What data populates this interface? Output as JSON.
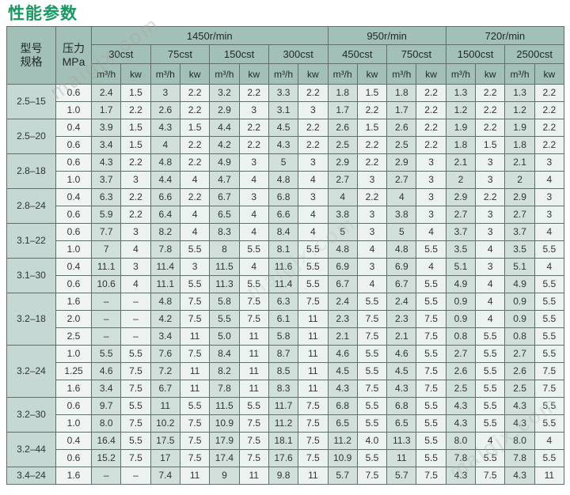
{
  "title": "性能参数",
  "watermark": "maigjx.com",
  "colors": {
    "title_green": "#169a60",
    "header_bg": "#a2bfb8",
    "model_col_bg": "#c6d8d3",
    "pressure_col_bg": "#f0f5f4",
    "flow_col_bg": "#d2e0dc",
    "power_col_bg": "#ecf2f0",
    "grid_line": "#5f6f6c"
  },
  "table": {
    "corner": {
      "model_spec": "型号\n规格",
      "pressure": "压力\nMPa"
    },
    "speed_groups": [
      {
        "label": "1450r/min",
        "viscosity_count": 4
      },
      {
        "label": "950r/min",
        "viscosity_count": 2
      },
      {
        "label": "720r/min",
        "viscosity_count": 2
      }
    ],
    "viscosities": [
      "30cst",
      "75cst",
      "150cst",
      "300cst",
      "450cst",
      "750cst",
      "1500cst",
      "2500cst"
    ],
    "unit_headers": [
      "m³/h",
      "kw"
    ],
    "groups": [
      {
        "model": "2.5–15",
        "rows": [
          {
            "pressure": "0.6",
            "values": [
              "2.4",
              "1.5",
              "3",
              "2.2",
              "3.2",
              "2.2",
              "3.3",
              "2.2",
              "1.8",
              "1.5",
              "1.8",
              "2.2",
              "1.3",
              "2.2",
              "1.3",
              "2.2"
            ]
          },
          {
            "pressure": "1.0",
            "values": [
              "1.7",
              "2.2",
              "2.6",
              "2.2",
              "2.9",
              "3",
              "3.1",
              "3",
              "1.7",
              "2.2",
              "1.7",
              "2.2",
              "1.2",
              "2.2",
              "1.2",
              "2.2"
            ]
          }
        ]
      },
      {
        "model": "2.5–20",
        "rows": [
          {
            "pressure": "0.4",
            "values": [
              "3.9",
              "1.5",
              "4.3",
              "1.5",
              "4.4",
              "2.2",
              "4.5",
              "2.2",
              "2.6",
              "1.5",
              "2.6",
              "2.2",
              "1.9",
              "2.2",
              "1.9",
              "2.2"
            ]
          },
          {
            "pressure": "0.6",
            "values": [
              "3.4",
              "1.5",
              "4",
              "2.2",
              "4.2",
              "2.2",
              "4.3",
              "2.2",
              "2.5",
              "2.2",
              "2.5",
              "2.2",
              "1.8",
              "1.5",
              "1.8",
              "2.2"
            ]
          }
        ]
      },
      {
        "model": "2.8–18",
        "rows": [
          {
            "pressure": "0.6",
            "values": [
              "4.3",
              "2.2",
              "4.8",
              "2.2",
              "4.9",
              "3",
              "5",
              "3",
              "2.9",
              "2.2",
              "2.9",
              "3",
              "2.1",
              "3",
              "2.1",
              "3"
            ]
          },
          {
            "pressure": "1.0",
            "values": [
              "3.7",
              "3",
              "4.4",
              "4",
              "4.7",
              "4",
              "4.8",
              "4",
              "2.7",
              "3",
              "2.7",
              "3",
              "2",
              "3",
              "2",
              "4"
            ]
          }
        ]
      },
      {
        "model": "2.8–24",
        "rows": [
          {
            "pressure": "0.4",
            "values": [
              "6.3",
              "2.2",
              "6.6",
              "2.2",
              "6.7",
              "3",
              "6.8",
              "3",
              "4",
              "2.2",
              "4",
              "3",
              "2.9",
              "2.2",
              "2.9",
              "3"
            ]
          },
          {
            "pressure": "0.6",
            "values": [
              "5.9",
              "2.2",
              "6.4",
              "4",
              "6.5",
              "4",
              "6.6",
              "4",
              "3.8",
              "3",
              "3.8",
              "3",
              "2.7",
              "3",
              "2.7",
              "3"
            ]
          }
        ]
      },
      {
        "model": "3.1–22",
        "rows": [
          {
            "pressure": "0.6",
            "values": [
              "7.7",
              "3",
              "8.2",
              "4",
              "8.3",
              "4",
              "8.4",
              "4",
              "5",
              "3",
              "5",
              "4",
              "3.7",
              "3",
              "3.7",
              "4"
            ]
          },
          {
            "pressure": "1.0",
            "values": [
              "7",
              "4",
              "7.8",
              "5.5",
              "8",
              "5.5",
              "8.1",
              "5.5",
              "4.8",
              "4",
              "4.8",
              "5.5",
              "3.5",
              "4",
              "3.5",
              "5.5"
            ]
          }
        ]
      },
      {
        "model": "3.1–30",
        "rows": [
          {
            "pressure": "0.4",
            "values": [
              "11.1",
              "3",
              "11.4",
              "3",
              "11.5",
              "4",
              "11.6",
              "5.5",
              "6.9",
              "3",
              "6.9",
              "4",
              "5.1",
              "3",
              "5.1",
              "4"
            ]
          },
          {
            "pressure": "0.6",
            "values": [
              "10.6",
              "4",
              "11.1",
              "5.5",
              "11.3",
              "5.5",
              "11.4",
              "5.5",
              "6.7",
              "4",
              "6.7",
              "5.5",
              "4.9",
              "4",
              "4.9",
              "5.5"
            ]
          }
        ]
      },
      {
        "model": "3.2–18",
        "rows": [
          {
            "pressure": "1.6",
            "values": [
              "–",
              "–",
              "4.8",
              "7.5",
              "5.8",
              "7.5",
              "6.3",
              "7.5",
              "2.4",
              "5.5",
              "2.4",
              "5.5",
              "0.9",
              "4",
              "0.9",
              "5.5"
            ]
          },
          {
            "pressure": "2.0",
            "values": [
              "–",
              "–",
              "4.2",
              "7.5",
              "5.5",
              "7.5",
              "6.1",
              "11",
              "2.3",
              "7.5",
              "2.3",
              "7.5",
              "0.9",
              "4",
              "0.9",
              "5.5"
            ]
          },
          {
            "pressure": "2.5",
            "values": [
              "–",
              "–",
              "3.4",
              "11",
              "5.0",
              "11",
              "5.8",
              "11",
              "2.1",
              "7.5",
              "2.1",
              "7.5",
              "0.8",
              "5.5",
              "0.8",
              "5.5"
            ]
          }
        ]
      },
      {
        "model": "3.2–24",
        "rows": [
          {
            "pressure": "1.0",
            "values": [
              "5.5",
              "5.5",
              "7.6",
              "7.5",
              "8.4",
              "11",
              "8.7",
              "11",
              "4.6",
              "5.5",
              "4.6",
              "5.5",
              "2.7",
              "5.5",
              "2.7",
              "5.5"
            ]
          },
          {
            "pressure": "1.25",
            "values": [
              "4.6",
              "7.5",
              "7.2",
              "11",
              "8.2",
              "11",
              "8.5",
              "11",
              "4.5",
              "5.5",
              "4.5",
              "7.5",
              "2.6",
              "5.5",
              "2.6",
              "7.5"
            ]
          },
          {
            "pressure": "1.6",
            "values": [
              "3.4",
              "7.5",
              "6.7",
              "11",
              "7.8",
              "11",
              "8.3",
              "11",
              "4.3",
              "7.5",
              "4.3",
              "7.5",
              "2.5",
              "5.5",
              "2.5",
              "7.5"
            ]
          }
        ]
      },
      {
        "model": "3.2–30",
        "rows": [
          {
            "pressure": "0.6",
            "values": [
              "9.7",
              "5.5",
              "11",
              "5.5",
              "11.5",
              "5.5",
              "11.7",
              "7.5",
              "6.8",
              "5.5",
              "6.8",
              "5.5",
              "4.3",
              "5.5",
              "4.3",
              "5.5"
            ]
          },
          {
            "pressure": "1.0",
            "values": [
              "8.0",
              "7.5",
              "10.2",
              "7.5",
              "10.9",
              "7.5",
              "11.2",
              "7.5",
              "6.5",
              "5.5",
              "6.5",
              "5.5",
              "4.3",
              "5.5",
              "4.3",
              "5.5"
            ]
          }
        ]
      },
      {
        "model": "3.2–44",
        "rows": [
          {
            "pressure": "0.4",
            "values": [
              "16.4",
              "5.5",
              "17.5",
              "7.5",
              "17.9",
              "7.5",
              "18.1",
              "7.5",
              "11.2",
              "4.0",
              "11.3",
              "5.5",
              "8.0",
              "4",
              "8.0",
              "4"
            ]
          },
          {
            "pressure": "0.6",
            "values": [
              "15.2",
              "7.5",
              "17",
              "7.5",
              "17.4",
              "7.5",
              "17.6",
              "7.5",
              "10.9",
              "5.5",
              "11",
              "5.5",
              "7.8",
              "5.5",
              "7.8",
              "5.5"
            ]
          }
        ]
      },
      {
        "model": "3.4–24",
        "rows": [
          {
            "pressure": "1.6",
            "values": [
              "–",
              "–",
              "7.4",
              "11",
              "9",
              "11",
              "9.8",
              "11",
              "5.7",
              "7.5",
              "5.7",
              "7.5",
              "4.3",
              "7.5",
              "4.3",
              "11"
            ]
          }
        ]
      }
    ]
  }
}
